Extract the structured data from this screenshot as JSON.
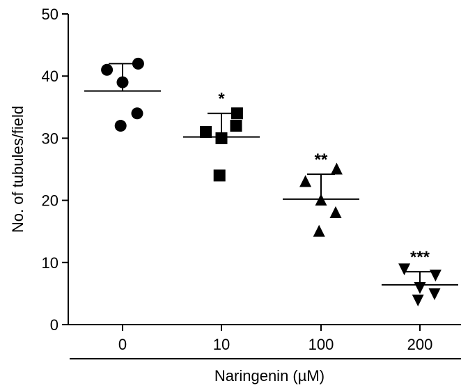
{
  "chart_data": {
    "type": "scatter",
    "title": "",
    "xlabel": "Naringenin (µM)",
    "ylabel": "No. of tubules/field",
    "ylim": [
      0,
      50
    ],
    "yticks": [
      0,
      10,
      20,
      30,
      40,
      50
    ],
    "categories": [
      "0",
      "10",
      "100",
      "200"
    ],
    "grid": false,
    "legend": "none",
    "series": [
      {
        "category": "0",
        "marker": "circle",
        "points": [
          41,
          42,
          39,
          32,
          34
        ],
        "mean": 37.6,
        "error_upper": 42.0,
        "significance": ""
      },
      {
        "category": "10",
        "marker": "square",
        "points": [
          31,
          34,
          30,
          24,
          32
        ],
        "mean": 30.2,
        "error_upper": 34.0,
        "significance": "*"
      },
      {
        "category": "100",
        "marker": "triangle-up",
        "points": [
          23,
          25,
          20,
          15,
          18
        ],
        "mean": 20.2,
        "error_upper": 24.2,
        "significance": "**"
      },
      {
        "category": "200",
        "marker": "triangle-down",
        "points": [
          9,
          8,
          6,
          4,
          5
        ],
        "mean": 6.4,
        "error_upper": 8.5,
        "significance": "***"
      }
    ],
    "colors": {
      "marker": "#000000",
      "axis": "#000000"
    }
  }
}
